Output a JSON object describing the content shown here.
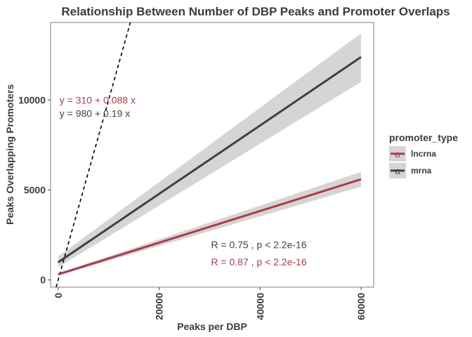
{
  "chart_data": {
    "type": "line",
    "title": "Relationship Between Number of DBP Peaks and Promoter Overlaps",
    "xlabel": "Peaks per DBP",
    "ylabel": "Peaks Overlapping Promoters",
    "xlim": [
      -1500,
      62500
    ],
    "ylim": [
      -400,
      14300
    ],
    "x_ticks": [
      0,
      20000,
      40000,
      60000
    ],
    "x_tick_labels": [
      "0",
      "20000",
      "40000",
      "60000"
    ],
    "y_ticks": [
      0,
      5000,
      10000
    ],
    "y_tick_labels": [
      "0",
      "5000",
      "10000"
    ],
    "grid": false,
    "legend": {
      "title": "promoter_type",
      "placement": "right",
      "entries": [
        "lncrna",
        "mrna"
      ],
      "key_glyph": "a"
    },
    "series": [
      {
        "name": "lncrna",
        "color": "#a83c4c",
        "x": [
          0,
          60000
        ],
        "y": [
          310,
          5590
        ],
        "ci_lower": [
          240,
          5180
        ],
        "ci_upper": [
          380,
          6000
        ]
      },
      {
        "name": "mrna",
        "color": "#404040",
        "x": [
          0,
          60000
        ],
        "y": [
          980,
          12380
        ],
        "ci_lower": [
          700,
          11000
        ],
        "ci_upper": [
          1300,
          13700
        ]
      }
    ],
    "reference_line": {
      "slope": 1,
      "intercept": 0,
      "style": "dashed"
    },
    "annotations": [
      {
        "series": "lncrna",
        "text": "y = 310 + 0.088 x",
        "anchor_x": 0,
        "anchor_y": 10000
      },
      {
        "series": "mrna",
        "text": "y = 980 + 0.19 x",
        "anchor_x": 0,
        "anchor_y": 9250
      },
      {
        "series": "mrna",
        "text": "R = 0.75 , p < 2.2e-16",
        "anchor_x": 30000,
        "anchor_y": 1950
      },
      {
        "series": "lncrna",
        "text": "R = 0.87 , p < 2.2e-16",
        "anchor_x": 30000,
        "anchor_y": 1000
      }
    ]
  }
}
